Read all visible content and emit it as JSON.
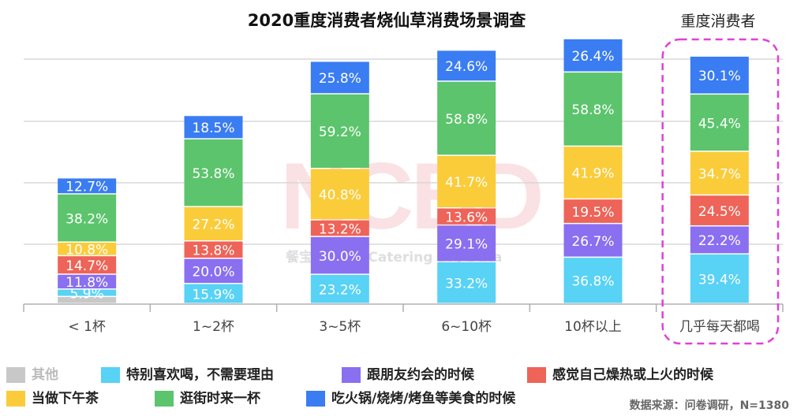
{
  "title": "2020重度消费者烧仙草消费场景调查",
  "heavy_label": "重度消费者",
  "watermark": "NCBD",
  "watermark_sub": "餐宝典 New Catering Big Data",
  "source": "数据来源：问卷调研，N=1380",
  "colors": {
    "其他": "#c8c8c8",
    "特别喜欢喝，不需要理由": "#58d2f5",
    "跟朋友约会的时候": "#8a6ff0",
    "感觉自己燥热或上火的时候": "#ee6458",
    "当做下午茶": "#fbcc3a",
    "逛街时来一杯": "#5cc46c",
    "吃火锅/烧烤/烤鱼等美食的时候": "#3a7cf2"
  },
  "legend": [
    [
      "其他",
      "特别喜欢喝，不需要理由",
      "跟朋友约会的时候",
      "感觉自己燥热或上火的时候"
    ],
    [
      "当做下午茶",
      "逛街时来一杯",
      "吃火锅/烧烤/烤鱼等美食的时候"
    ]
  ],
  "chart_data": {
    "type": "bar",
    "stacked": true,
    "title": "2020重度消费者烧仙草消费场景调查",
    "categories": [
      "< 1杯",
      "1~2杯",
      "3~5杯",
      "6~10杯",
      "10杯以上",
      "几乎每天都喝"
    ],
    "highlight_category": "几乎每天都喝",
    "series": [
      {
        "name": "其他",
        "values": [
          5.6,
          0,
          0,
          0,
          0,
          0
        ],
        "labels": [
          "",
          "",
          "",
          "",
          "",
          ""
        ]
      },
      {
        "name": "特别喜欢喝，不需要理由",
        "values": [
          5.9,
          15.9,
          23.2,
          33.2,
          36.8,
          39.4
        ],
        "labels": [
          "5.9%",
          "15.9%",
          "23.2%",
          "33.2%",
          "36.8%",
          "39.4%"
        ]
      },
      {
        "name": "跟朋友约会的时候",
        "values": [
          11.8,
          20.0,
          30.0,
          29.1,
          26.7,
          22.2
        ],
        "labels": [
          "11.8%",
          "20.0%",
          "30.0%",
          "29.1%",
          "26.7%",
          "22.2%"
        ]
      },
      {
        "name": "感觉自己燥热或上火的时候",
        "values": [
          14.7,
          13.8,
          13.2,
          13.6,
          19.5,
          24.5
        ],
        "labels": [
          "14.7%",
          "13.8%",
          "13.2%",
          "13.6%",
          "19.5%",
          "24.5%"
        ]
      },
      {
        "name": "当做下午茶",
        "values": [
          10.8,
          27.2,
          40.8,
          41.7,
          41.9,
          34.7
        ],
        "labels": [
          "10.8%",
          "27.2%",
          "40.8%",
          "41.7%",
          "41.9%",
          "34.7%"
        ]
      },
      {
        "name": "逛街时来一杯",
        "values": [
          38.2,
          53.8,
          59.2,
          58.8,
          58.8,
          45.4
        ],
        "labels": [
          "38.2%",
          "53.8%",
          "59.2%",
          "58.8%",
          "58.8%",
          "45.4%"
        ]
      },
      {
        "name": "吃火锅/烧烤/烤鱼等美食的时候",
        "values": [
          12.7,
          18.5,
          25.8,
          24.6,
          26.4,
          30.1
        ],
        "labels": [
          "12.7%",
          "18.5%",
          "25.8%",
          "24.6%",
          "26.4%",
          "30.1%"
        ]
      }
    ],
    "grid": true,
    "legend_position": "bottom"
  }
}
